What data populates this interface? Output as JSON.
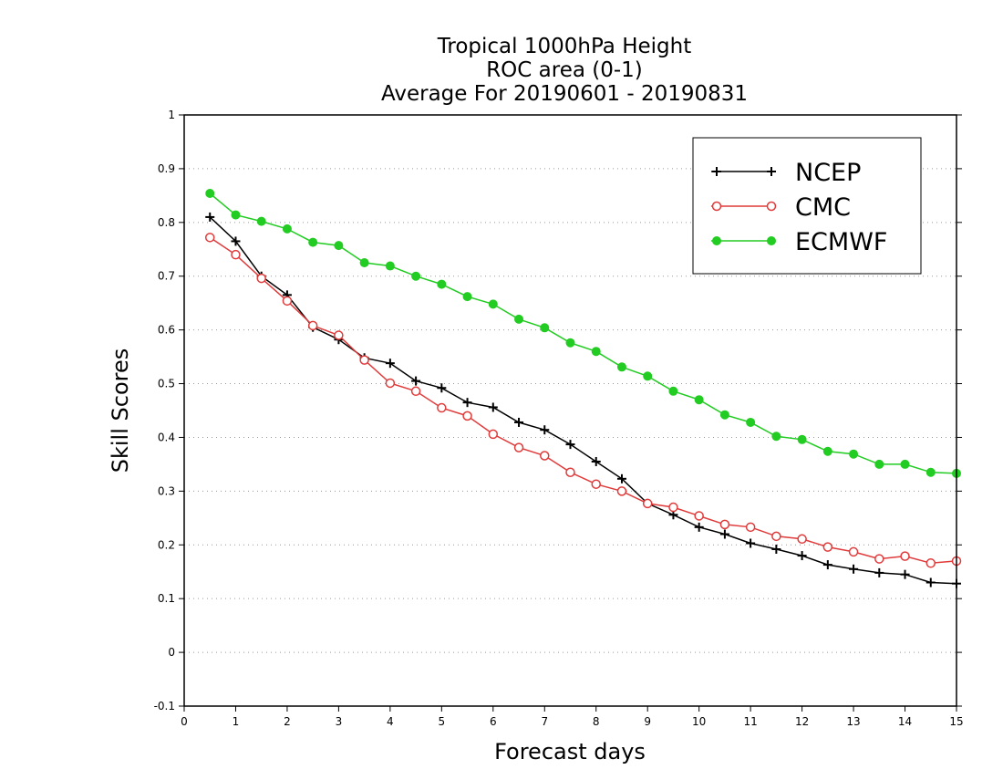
{
  "chart_data": {
    "type": "line",
    "title_lines": [
      "Tropical 1000hPa Height",
      "ROC area (0-1)",
      "Average For 20190601 - 20190831"
    ],
    "xlabel": "Forecast days",
    "ylabel": "Skill Scores",
    "xlim": [
      0,
      15
    ],
    "ylim": [
      -0.1,
      1
    ],
    "xticks": [
      "0",
      "1",
      "2",
      "3",
      "4",
      "5",
      "6",
      "7",
      "8",
      "9",
      "10",
      "11",
      "12",
      "13",
      "14",
      "15"
    ],
    "yticks": [
      "-0.1",
      "0",
      "0.1",
      "0.2",
      "0.3",
      "0.4",
      "0.5",
      "0.6",
      "0.7",
      "0.8",
      "0.9",
      "1"
    ],
    "grid": "horizontal dotted",
    "legend_position": "top-right",
    "x": [
      0.5,
      1,
      1.5,
      2,
      2.5,
      3,
      3.5,
      4,
      4.5,
      5,
      5.5,
      6,
      6.5,
      7,
      7.5,
      8,
      8.5,
      9,
      9.5,
      10,
      10.5,
      11,
      11.5,
      12,
      12.5,
      13,
      13.5,
      14,
      14.5,
      15
    ],
    "series": [
      {
        "name": "NCEP",
        "color": "#000000",
        "marker": "plus",
        "values": [
          0.81,
          0.765,
          0.7,
          0.665,
          0.605,
          0.582,
          0.548,
          0.538,
          0.505,
          0.492,
          0.465,
          0.456,
          0.428,
          0.414,
          0.387,
          0.355,
          0.323,
          0.277,
          0.256,
          0.233,
          0.22,
          0.203,
          0.192,
          0.18,
          0.163,
          0.155,
          0.148,
          0.145,
          0.13,
          0.128
        ]
      },
      {
        "name": "CMC",
        "color": "#e03a3a",
        "marker": "open-circle",
        "values": [
          0.772,
          0.74,
          0.696,
          0.654,
          0.608,
          0.59,
          0.544,
          0.501,
          0.486,
          0.455,
          0.44,
          0.406,
          0.381,
          0.366,
          0.335,
          0.313,
          0.3,
          0.277,
          0.27,
          0.254,
          0.238,
          0.233,
          0.216,
          0.211,
          0.196,
          0.187,
          0.174,
          0.179,
          0.166,
          0.17
        ]
      },
      {
        "name": "ECMWF",
        "color": "#22cc22",
        "marker": "filled-circle",
        "values": [
          0.854,
          0.814,
          0.802,
          0.788,
          0.763,
          0.757,
          0.725,
          0.719,
          0.7,
          0.685,
          0.662,
          0.648,
          0.62,
          0.604,
          0.576,
          0.56,
          0.531,
          0.514,
          0.486,
          0.47,
          0.442,
          0.428,
          0.402,
          0.396,
          0.374,
          0.369,
          0.35,
          0.35,
          0.335,
          0.333
        ]
      }
    ]
  }
}
